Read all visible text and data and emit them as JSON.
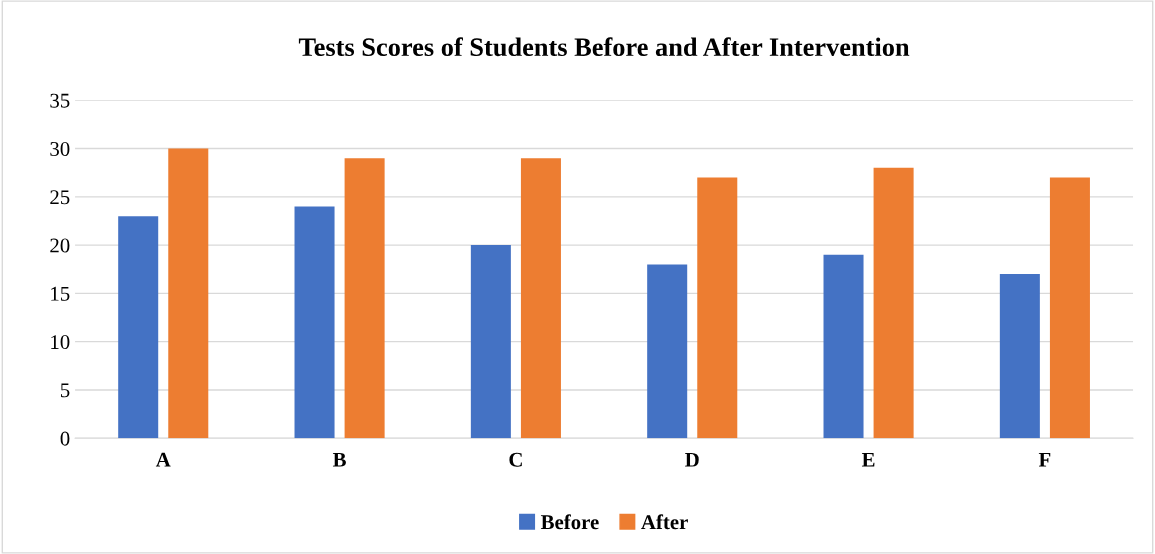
{
  "chart_data": {
    "type": "bar",
    "title": "Tests Scores of Students Before and After Intervention",
    "categories": [
      "A",
      "B",
      "C",
      "D",
      "E",
      "F"
    ],
    "series": [
      {
        "name": "Before",
        "color": "#4472c4",
        "values": [
          23,
          24,
          20,
          18,
          19,
          17
        ]
      },
      {
        "name": "After",
        "color": "#ed7d31",
        "values": [
          30,
          29,
          29,
          27,
          28,
          27
        ]
      }
    ],
    "ylim": [
      0,
      35
    ],
    "yticks": [
      0,
      5,
      10,
      15,
      20,
      25,
      30,
      35
    ],
    "grid": "y",
    "legend": "bottom"
  }
}
